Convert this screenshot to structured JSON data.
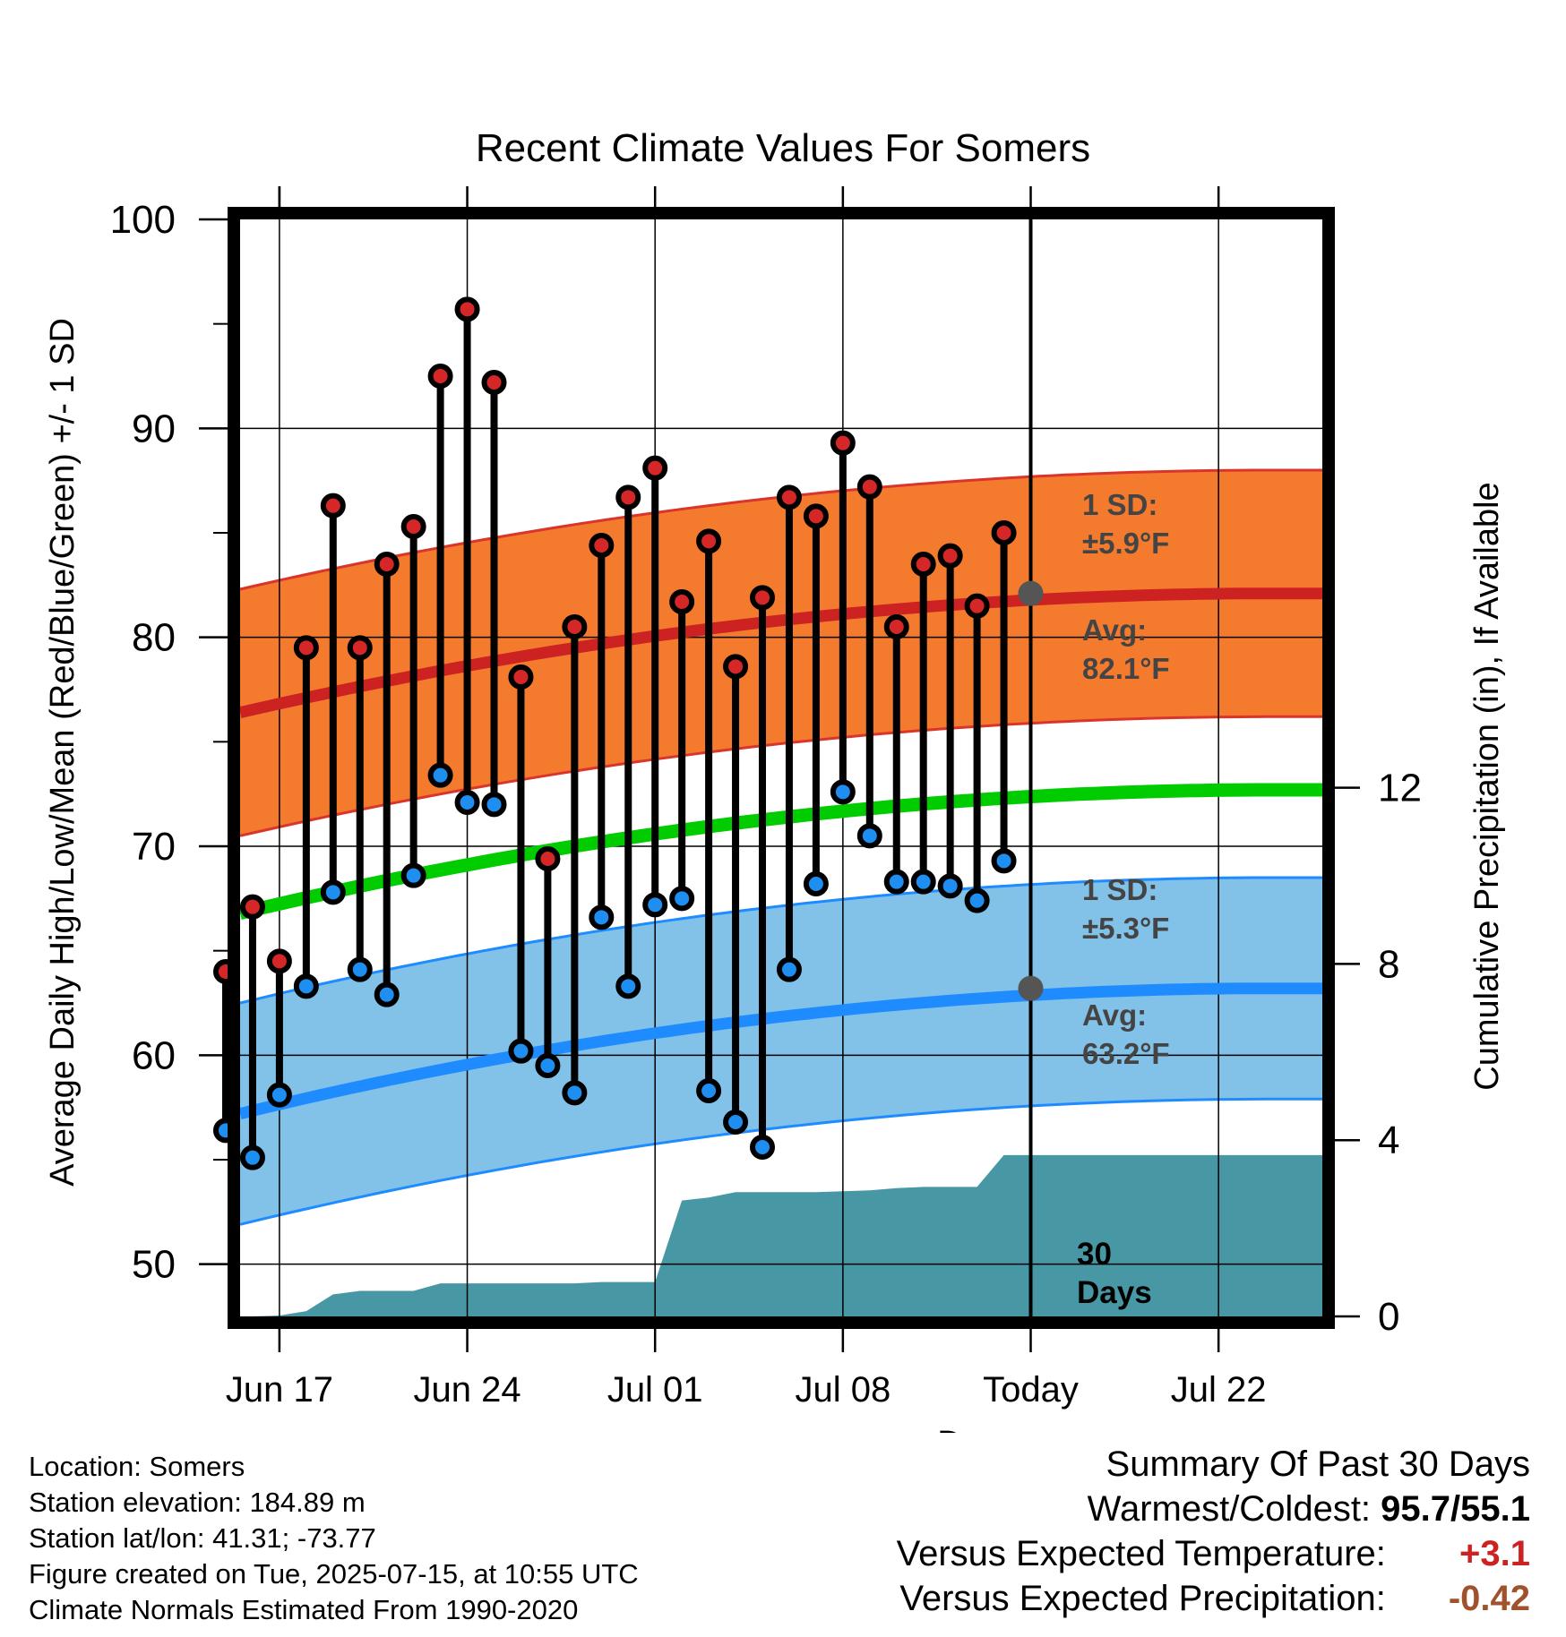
{
  "chart_data": {
    "type": "line",
    "title": "Recent Climate Values For Somers",
    "xlabel": "Day",
    "ylabel": "Average Daily High/Low/Mean (Red/Blue/Green) +/- 1 SD",
    "y2label": "Cumulative Precipitation (in), If Available",
    "ylim": [
      47.5,
      100
    ],
    "y2lim": [
      0,
      24.9
    ],
    "yticks": [
      "50",
      "60",
      "70",
      "80",
      "90",
      "100"
    ],
    "y2ticks": [
      "0",
      "4",
      "8",
      "12"
    ],
    "xtick_labels": [
      "Jun 17",
      "Jun 24",
      "Jul 01",
      "Jul 08",
      "Today",
      "Jul 22"
    ],
    "grid": true,
    "high_normal": {
      "avg_start": 76.4,
      "avg_end": 82.1,
      "sd_label": "1 SD:",
      "sd_value": "±5.9°F",
      "avg_label": "Avg:",
      "avg_value": "82.1°F",
      "color": "#cc2222",
      "band_color": "#f47a2e"
    },
    "low_normal": {
      "avg_start": 57.2,
      "avg_end": 63.2,
      "sd_label": "1 SD:",
      "sd_value": "±5.3°F",
      "avg_label": "Avg:",
      "avg_value": "63.2°F",
      "color": "#1e8cff",
      "band_color": "#82c1e8"
    },
    "mean_normal": {
      "start": 66.8,
      "end": 72.7,
      "color": "#00cc00"
    },
    "daily_obs": {
      "dates": [
        "Jun 15",
        "Jun 16",
        "Jun 17",
        "Jun 18",
        "Jun 19",
        "Jun 20",
        "Jun 21",
        "Jun 22",
        "Jun 23",
        "Jun 24",
        "Jun 25",
        "Jun 26",
        "Jun 27",
        "Jun 28",
        "Jun 29",
        "Jun 30",
        "Jul 01",
        "Jul 02",
        "Jul 03",
        "Jul 04",
        "Jul 05",
        "Jul 06",
        "Jul 07",
        "Jul 08",
        "Jul 09",
        "Jul 10",
        "Jul 11",
        "Jul 12",
        "Jul 13",
        "Jul 14"
      ],
      "high": [
        64.0,
        67.1,
        64.5,
        79.5,
        86.3,
        79.5,
        83.5,
        85.3,
        92.5,
        95.7,
        92.2,
        78.1,
        69.4,
        80.5,
        84.4,
        86.7,
        88.1,
        81.7,
        84.6,
        78.6,
        81.9,
        86.7,
        85.8,
        89.3,
        87.2,
        80.5,
        83.5,
        83.9,
        81.5,
        85.0
      ],
      "low": [
        56.4,
        55.1,
        58.1,
        63.3,
        67.8,
        64.1,
        62.9,
        68.6,
        73.4,
        72.1,
        72.0,
        60.2,
        59.5,
        58.2,
        66.6,
        63.3,
        67.2,
        67.5,
        58.3,
        56.8,
        55.6,
        64.1,
        68.2,
        72.6,
        70.5,
        68.3,
        68.3,
        68.1,
        67.4,
        69.3
      ]
    },
    "precip": {
      "days": [
        1,
        2,
        3,
        4,
        5,
        6,
        7,
        8,
        9,
        10,
        11,
        12,
        13,
        14,
        15,
        16,
        17,
        18,
        19,
        20,
        21,
        22,
        23,
        24,
        25,
        26,
        27,
        28,
        29,
        30
      ],
      "cumulative": [
        0.0,
        0.02,
        0.12,
        0.5,
        0.58,
        0.58,
        0.58,
        0.75,
        0.75,
        0.75,
        0.75,
        0.75,
        0.75,
        0.78,
        0.78,
        0.78,
        2.63,
        2.7,
        2.82,
        2.82,
        2.82,
        2.82,
        2.84,
        2.86,
        2.91,
        2.94,
        2.94,
        2.94,
        3.66,
        3.66
      ],
      "color": "#4798a4"
    },
    "today_label": "Today",
    "window_label_1": "30",
    "window_label_2": "Days"
  },
  "footer": {
    "location": "Location: Somers",
    "elevation": "Station elevation: 184.89 m",
    "latlon": "Station lat/lon: 41.31; -73.77",
    "created": "Figure created on Tue, 2025-07-15, at 10:55 UTC",
    "normals": "Climate Normals Estimated From 1990-2020"
  },
  "summary": {
    "title": "Summary Of Past 30 Days",
    "warmest_label": "Warmest/Coldest:",
    "warmest_value": "95.7/55.1",
    "temp_label": "Versus Expected Temperature:",
    "temp_value": "+3.1",
    "temp_color": "#cc2222",
    "precip_label": "Versus Expected Precipitation:",
    "precip_value": "-0.42",
    "precip_color": "#a0522d"
  }
}
